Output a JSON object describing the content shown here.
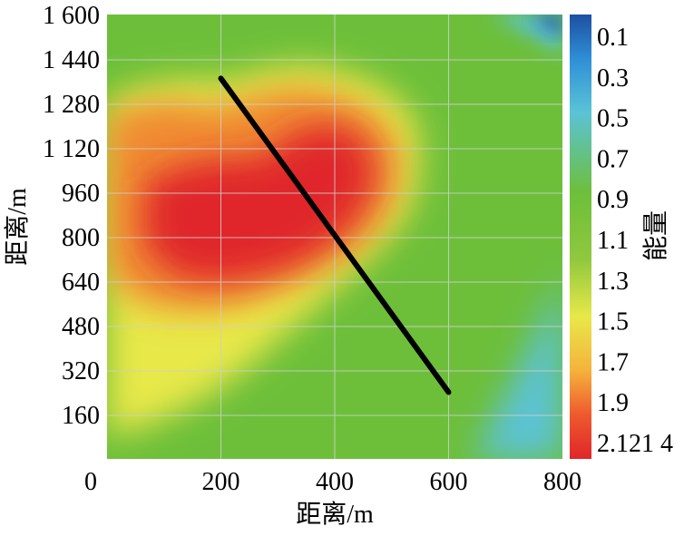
{
  "chart_data": {
    "type": "heatmap",
    "xlabel": "距离/m",
    "ylabel": "距离/m",
    "colorbar_label": "能量",
    "xlim": [
      0,
      800
    ],
    "ylim": [
      0,
      1600
    ],
    "x_ticks": [
      "0",
      "200",
      "400",
      "600",
      "800"
    ],
    "y_ticks": [
      "160",
      "320",
      "480",
      "640",
      "800",
      "960",
      "1 120",
      "1 280",
      "1 440",
      "1 600"
    ],
    "colorbar_ticks": [
      "0.1",
      "0.3",
      "0.5",
      "0.7",
      "0.9",
      "1.1",
      "1.3",
      "1.5",
      "1.7",
      "1.9",
      "2.121 4"
    ],
    "colorbar_range": [
      0,
      2.1214
    ],
    "grid": true,
    "colormap": [
      "#1e4fa3",
      "#2e8fd6",
      "#5bc3d6",
      "#6dbf3a",
      "#8fc83e",
      "#e8e84a",
      "#f5b33c",
      "#ee5a2e",
      "#e0262a"
    ],
    "hotspot": {
      "x": 300,
      "y": 850,
      "peak": 2.1214
    },
    "fault_line": {
      "points": [
        [
          200,
          1370
        ],
        [
          600,
          240
        ]
      ],
      "color": "#000000"
    }
  }
}
